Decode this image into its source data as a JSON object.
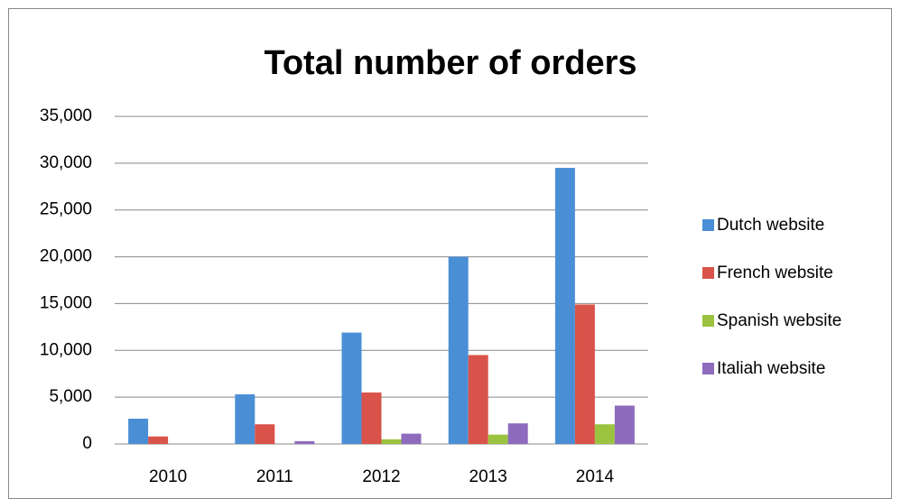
{
  "chart_data": {
    "type": "bar",
    "title": "Total number of orders",
    "categories": [
      "2010",
      "2011",
      "2012",
      "2013",
      "2014"
    ],
    "series": [
      {
        "name": "Dutch website",
        "color": "#4a8fd6",
        "values": [
          2700,
          5300,
          11900,
          20000,
          29500
        ]
      },
      {
        "name": "French website",
        "color": "#d9534a",
        "values": [
          800,
          2100,
          5500,
          9500,
          14900
        ]
      },
      {
        "name": "Spanish website",
        "color": "#9bc33f",
        "values": [
          0,
          0,
          500,
          1000,
          2100
        ]
      },
      {
        "name": "Italiah website",
        "color": "#8e6bbd",
        "values": [
          0,
          300,
          1100,
          2200,
          4100
        ]
      }
    ],
    "ylim": [
      0,
      35000
    ],
    "yticks": [
      0,
      {
        "value": 5000,
        "label": "5,000"
      },
      {
        "value": 10000,
        "label": "10,000"
      },
      {
        "value": 15000,
        "label": "15,000"
      },
      {
        "value": 20000,
        "label": "20,000"
      },
      {
        "value": 25000,
        "label": "25,000"
      },
      {
        "value": 30000,
        "label": "30,000"
      },
      {
        "value": 35000,
        "label": "35,000"
      }
    ],
    "grid": true,
    "legend": "right"
  }
}
